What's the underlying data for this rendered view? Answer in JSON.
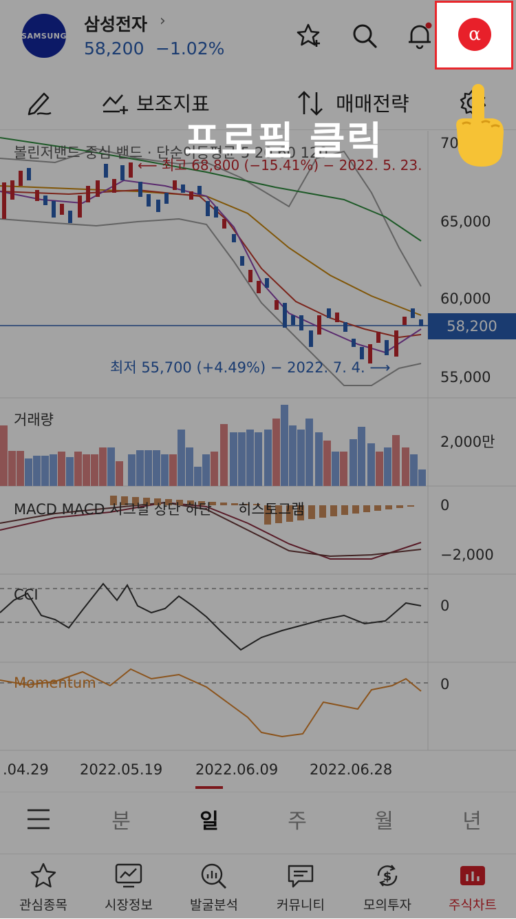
{
  "header": {
    "logo_text": "SAMSUNG",
    "stock_name": "삼성전자",
    "chevron": "›",
    "price": "58,200",
    "change": "−1.02%",
    "alpha_label": "α",
    "icons": [
      "star-plus-icon",
      "search-icon",
      "bell-icon",
      "alpha-icon"
    ]
  },
  "toolbar": {
    "aux_indicator": "보조지표",
    "trade_strategy": "매매전략",
    "icons": [
      "pencil-icon",
      "chart-plus-icon",
      "sort-icon",
      "gear-icon"
    ]
  },
  "chart": {
    "legend_main": "볼린저밴드  중심  밴드   ·  단순이동평균 5 20 60 120",
    "high_label": "최고 68,800 (−15.41%) − 2022. 5. 23.",
    "low_label": "최저 55,700 (+4.49%) − 2022. 7. 4.",
    "y_ticks": [
      "70,000",
      "65,000",
      "60,000",
      "55,000"
    ],
    "current_price": "58,200",
    "volume_label": "거래량",
    "volume_tick": "2,000만",
    "macd_label": "MACD  MACD  시그널  상단  하단",
    "macd_hist_label": "히스토그램",
    "macd_ticks": [
      "0",
      "−2,000"
    ],
    "cci_label": "CCI",
    "cci_tick": "0",
    "momentum_label": "Momentum",
    "momentum_tick": "0",
    "x_dates": [
      ".04.29",
      "2022.05.19",
      "2022.06.09",
      "2022.06.28"
    ],
    "colors": {
      "up": "#c0272d",
      "down": "#2a5db0",
      "ma5": "#8e44ad",
      "ma20": "#c0392b",
      "ma60": "#c8860a",
      "ma120": "#2e8b3e",
      "band": "#999999",
      "momentum": "#d9822b"
    }
  },
  "periods": [
    "분",
    "일",
    "주",
    "월",
    "년"
  ],
  "selected_period": "일",
  "nav": [
    {
      "label": "관심종목",
      "icon": "star-icon"
    },
    {
      "label": "시장정보",
      "icon": "monitor-chart-icon"
    },
    {
      "label": "발굴분석",
      "icon": "magnifier-chart-icon"
    },
    {
      "label": "커뮤니티",
      "icon": "chat-icon"
    },
    {
      "label": "모의투자",
      "icon": "dollar-cycle-icon"
    },
    {
      "label": "주식차트",
      "icon": "bar-chart-icon"
    }
  ],
  "overlay": {
    "caption": "프로필 클릭"
  }
}
